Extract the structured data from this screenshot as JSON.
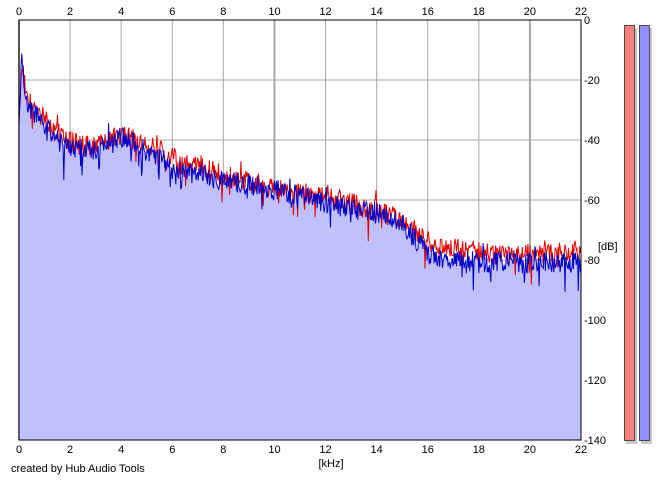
{
  "credit": "created by Hub Audio Tools",
  "meters": {
    "left_color": "#ff7f7f",
    "right_color": "#8f8fff"
  },
  "chart_data": {
    "type": "line",
    "title": "",
    "xlabel": "[kHz]",
    "ylabel": "[dB]",
    "xlim": [
      0,
      22
    ],
    "ylim": [
      -140,
      0
    ],
    "x_ticks": [
      "0",
      "2",
      "4",
      "6",
      "8",
      "10",
      "12",
      "14",
      "16",
      "18",
      "20",
      "22"
    ],
    "y_ticks": [
      "0",
      "-20",
      "-40",
      "-60",
      "-80",
      "-100",
      "-120",
      "-140"
    ],
    "grid": true,
    "legend": "none",
    "fill_color": "#c0c0ff",
    "series": [
      {
        "color": "#e00000",
        "x": [
          0,
          0.1,
          0.2,
          0.3,
          0.5,
          0.7,
          1.0,
          1.3,
          1.6,
          2.0,
          2.5,
          3.0,
          3.5,
          4.0,
          4.5,
          5.0,
          5.5,
          6.0,
          6.5,
          7.0,
          7.5,
          8.0,
          8.5,
          9.0,
          9.5,
          10.0,
          10.5,
          11.0,
          11.5,
          12.0,
          12.5,
          13.0,
          13.5,
          14.0,
          14.5,
          15.0,
          15.5,
          16.0,
          16.5,
          17.0,
          17.5,
          18.0,
          18.5,
          19.0,
          19.5,
          20.0,
          20.5,
          21.0,
          21.5,
          22.0
        ],
        "y": [
          -32,
          -15,
          -20,
          -25,
          -28,
          -30,
          -33,
          -36,
          -38,
          -40,
          -42,
          -42,
          -41,
          -38,
          -40,
          -42,
          -43,
          -46,
          -47,
          -48,
          -50,
          -52,
          -53,
          -54,
          -55,
          -56,
          -56,
          -57,
          -58,
          -59,
          -60,
          -61,
          -63,
          -63,
          -65,
          -67,
          -70,
          -74,
          -75,
          -76,
          -77,
          -77,
          -78,
          -78,
          -78,
          -78,
          -77,
          -78,
          -77,
          -77
        ]
      },
      {
        "color": "#0000c8",
        "x": [
          0,
          0.1,
          0.2,
          0.3,
          0.5,
          0.7,
          1.0,
          1.3,
          1.6,
          2.0,
          2.5,
          3.0,
          3.5,
          4.0,
          4.5,
          5.0,
          5.5,
          6.0,
          6.5,
          7.0,
          7.5,
          8.0,
          8.5,
          9.0,
          9.5,
          10.0,
          10.5,
          11.0,
          11.5,
          12.0,
          12.5,
          13.0,
          13.5,
          14.0,
          14.5,
          15.0,
          15.5,
          16.0,
          16.5,
          17.0,
          17.5,
          18.0,
          18.5,
          19.0,
          19.5,
          20.0,
          20.5,
          21.0,
          21.5,
          22.0
        ],
        "y": [
          -35,
          -12,
          -22,
          -28,
          -30,
          -32,
          -36,
          -38,
          -41,
          -42,
          -43,
          -43,
          -42,
          -39,
          -41,
          -44,
          -45,
          -50,
          -50,
          -51,
          -52,
          -54,
          -54,
          -55,
          -56,
          -57,
          -58,
          -58,
          -60,
          -61,
          -62,
          -63,
          -64,
          -64,
          -66,
          -68,
          -73,
          -78,
          -79,
          -80,
          -81,
          -81,
          -81,
          -80,
          -81,
          -81,
          -80,
          -81,
          -81,
          -81
        ]
      }
    ]
  }
}
